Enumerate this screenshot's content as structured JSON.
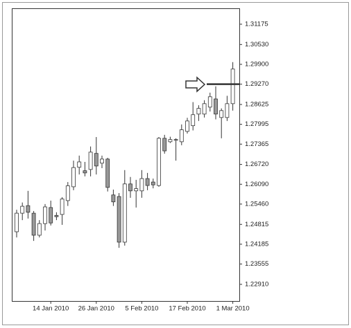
{
  "chart_data": {
    "type": "candlestick",
    "categories": [
      null,
      null,
      null,
      null,
      null,
      null,
      "14 Jan 2010",
      null,
      null,
      null,
      null,
      null,
      null,
      null,
      "26 Jan 2010",
      null,
      null,
      null,
      null,
      null,
      null,
      null,
      "5 Feb 2010",
      null,
      null,
      null,
      null,
      null,
      null,
      null,
      "17 Feb 2010",
      null,
      null,
      null,
      null,
      null,
      null,
      null,
      "1 Mar 2010"
    ],
    "open": [
      1.2458,
      1.2517,
      1.2541,
      1.2517,
      1.2447,
      1.2484,
      1.2535,
      1.251,
      1.2513,
      1.2557,
      1.2601,
      1.2663,
      1.2652,
      1.2656,
      1.2707,
      1.2676,
      1.2689,
      1.2575,
      1.257,
      1.2425,
      1.261,
      1.2588,
      1.2588,
      1.2627,
      1.2616,
      1.2605,
      1.2755,
      1.2744,
      1.2749,
      1.2744,
      1.2777,
      1.2795,
      1.2832,
      1.2832,
      1.2854,
      1.288,
      1.2821,
      1.2821,
      1.2865
    ],
    "high": [
      1.2528,
      1.2551,
      1.2588,
      1.2524,
      1.2495,
      1.2546,
      1.2557,
      1.252,
      1.2568,
      1.2616,
      1.2684,
      1.27,
      1.268,
      1.2729,
      1.2759,
      1.27,
      1.2693,
      1.2592,
      1.2581,
      1.2654,
      1.2632,
      1.2623,
      1.2654,
      1.2645,
      1.2627,
      1.2759,
      1.2766,
      1.276,
      1.2755,
      1.2799,
      1.282,
      1.287,
      1.286,
      1.2876,
      1.29,
      1.292,
      1.285,
      1.289,
      1.2997
    ],
    "low": [
      1.244,
      1.2495,
      1.25,
      1.2429,
      1.244,
      1.2462,
      1.2478,
      1.2495,
      1.248,
      1.254,
      1.259,
      1.264,
      1.2634,
      1.2634,
      1.264,
      1.266,
      1.2586,
      1.254,
      1.2407,
      1.2414,
      1.2566,
      1.2535,
      1.2566,
      1.259,
      1.2596,
      1.2601,
      1.2706,
      1.274,
      1.2684,
      1.2733,
      1.277,
      1.278,
      1.281,
      1.2821,
      1.284,
      1.2815,
      1.2755,
      1.281,
      1.2843
    ],
    "close": [
      1.2517,
      1.2539,
      1.252,
      1.2447,
      1.2484,
      1.2537,
      1.2486,
      1.2506,
      1.2562,
      1.2604,
      1.2662,
      1.268,
      1.2645,
      1.2711,
      1.2667,
      1.2689,
      1.2599,
      1.2553,
      1.2425,
      1.261,
      1.2588,
      1.2595,
      1.2627,
      1.2605,
      1.2607,
      1.2755,
      1.2715,
      1.2751,
      1.2751,
      1.2782,
      1.281,
      1.283,
      1.285,
      1.2865,
      1.2887,
      1.2832,
      1.2843,
      1.2865,
      1.2975
    ],
    "up_color": "#ffffff",
    "down_color": "#999999",
    "level": 1.2927,
    "ylim": [
      1.2238,
      1.3168
    ],
    "yticks": [
      {
        "value": 1.2291,
        "label": "1.22910"
      },
      1.23555,
      1.24185,
      1.24815,
      {
        "value": 1.2546,
        "label": "1.25460"
      },
      {
        "value": 1.2609,
        "label": "1.26090"
      },
      {
        "value": 1.2672,
        "label": "1.26720"
      },
      1.27365,
      1.27995,
      1.28625,
      {
        "value": 1.2927,
        "label": "1.29270"
      },
      {
        "value": 1.299,
        "label": "1.29900"
      },
      {
        "value": 1.3053,
        "label": "1.30530"
      },
      1.31175
    ]
  }
}
